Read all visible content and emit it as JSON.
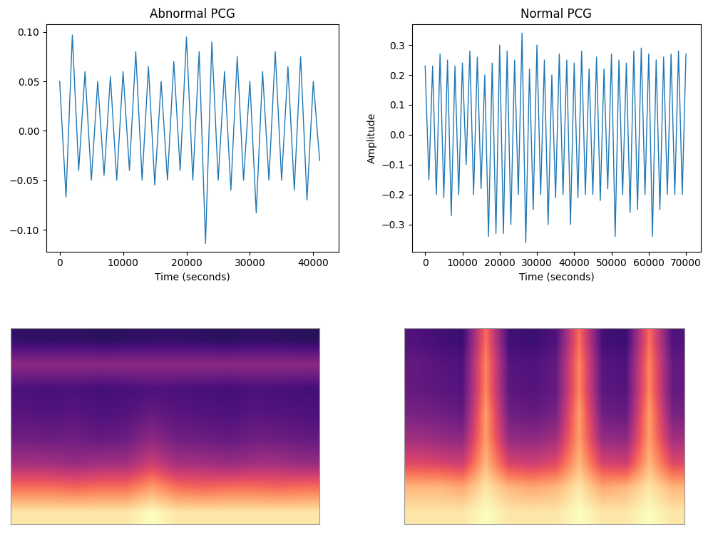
{
  "chart_data": [
    {
      "type": "line",
      "title": "Abnormal PCG",
      "x_label": "Time (seconds)",
      "x": [
        0,
        1000,
        2000,
        3000,
        4000,
        5000,
        6000,
        7000,
        8000,
        9000,
        10000,
        11000,
        12000,
        13000,
        14000,
        15000,
        16000,
        17000,
        18000,
        19000,
        20000,
        21000,
        22000,
        23000,
        24000,
        25000,
        26000,
        27000,
        28000,
        29000,
        30000,
        31000,
        32000,
        33000,
        34000,
        35000,
        36000,
        37000,
        38000,
        39000,
        40000,
        41000
      ],
      "values": [
        0.05,
        -0.067,
        0.097,
        -0.04,
        0.06,
        -0.05,
        0.05,
        -0.045,
        0.055,
        -0.05,
        0.06,
        -0.04,
        0.08,
        -0.05,
        0.065,
        -0.055,
        0.05,
        -0.05,
        0.07,
        -0.04,
        0.095,
        -0.05,
        0.08,
        -0.114,
        0.09,
        -0.05,
        0.06,
        -0.06,
        0.075,
        -0.05,
        0.05,
        -0.083,
        0.06,
        -0.05,
        0.08,
        -0.05,
        0.065,
        -0.06,
        0.075,
        -0.07,
        0.05,
        -0.03
      ],
      "color": "#1f77b4",
      "xlim": [
        -2100,
        44000
      ],
      "xticks": [
        0,
        10000,
        20000,
        30000,
        40000
      ],
      "ylim": [
        -0.122,
        0.108
      ],
      "yticks": [
        {
          "value": -0.1,
          "label": "−0.10"
        },
        {
          "value": -0.05,
          "label": "−0.05"
        },
        {
          "value": 0.0,
          "label": "0.00"
        },
        {
          "value": 0.05,
          "label": "0.05"
        },
        {
          "value": 0.1,
          "label": "0.10"
        }
      ]
    },
    {
      "type": "line",
      "title": "Normal PCG",
      "x_label": "Time (seconds)",
      "y_label": "Amplitude",
      "x": [
        0,
        1000,
        2000,
        3000,
        4000,
        5000,
        6000,
        7000,
        8000,
        9000,
        10000,
        11000,
        12000,
        13000,
        14000,
        15000,
        16000,
        17000,
        18000,
        19000,
        20000,
        21000,
        22000,
        23000,
        24000,
        25000,
        26000,
        27000,
        28000,
        29000,
        30000,
        31000,
        32000,
        33000,
        34000,
        35000,
        36000,
        37000,
        38000,
        39000,
        40000,
        41000,
        42000,
        43000,
        44000,
        45000,
        46000,
        47000,
        48000,
        49000,
        50000,
        51000,
        52000,
        53000,
        54000,
        55000,
        56000,
        57000,
        58000,
        59000,
        60000,
        61000,
        62000,
        63000,
        64000,
        65000,
        66000,
        67000,
        68000,
        69000,
        70000
      ],
      "values": [
        0.23,
        -0.15,
        0.23,
        -0.2,
        0.27,
        -0.21,
        0.25,
        -0.27,
        0.23,
        -0.2,
        0.24,
        -0.1,
        0.28,
        -0.2,
        0.26,
        -0.18,
        0.2,
        -0.34,
        0.24,
        -0.33,
        0.3,
        -0.33,
        0.28,
        -0.3,
        0.25,
        -0.2,
        0.34,
        -0.36,
        0.22,
        -0.25,
        0.3,
        -0.2,
        0.25,
        -0.3,
        0.2,
        -0.21,
        0.27,
        -0.2,
        0.25,
        -0.3,
        0.24,
        -0.21,
        0.28,
        -0.2,
        0.22,
        -0.2,
        0.26,
        -0.22,
        0.22,
        -0.18,
        0.27,
        -0.34,
        0.25,
        -0.2,
        0.24,
        -0.26,
        0.28,
        -0.25,
        0.29,
        -0.2,
        0.27,
        -0.34,
        0.25,
        -0.25,
        0.26,
        -0.2,
        0.27,
        -0.2,
        0.28,
        -0.2,
        0.27
      ],
      "color": "#1f77b4",
      "xlim": [
        -3500,
        74000
      ],
      "xticks": [
        0,
        10000,
        20000,
        30000,
        40000,
        50000,
        60000,
        70000
      ],
      "ylim": [
        -0.39,
        0.37
      ],
      "yticks": [
        {
          "value": -0.3,
          "label": "−0.3"
        },
        {
          "value": -0.2,
          "label": "−0.2"
        },
        {
          "value": -0.1,
          "label": "−0.1"
        },
        {
          "value": 0.0,
          "label": "0.0"
        },
        {
          "value": 0.1,
          "label": "0.1"
        },
        {
          "value": 0.2,
          "label": "0.2"
        },
        {
          "value": 0.3,
          "label": "0.3"
        }
      ]
    },
    {
      "type": "heatmap",
      "tick_labels": false,
      "vlim": [
        0,
        1
      ],
      "cells": [
        [
          0.95,
          0.95,
          0.95,
          0.95,
          0.95,
          1.0,
          0.95,
          0.95,
          0.95,
          0.95,
          0.95,
          0.95
        ],
        [
          0.7,
          0.7,
          0.68,
          0.7,
          0.7,
          0.8,
          0.7,
          0.68,
          0.7,
          0.7,
          0.68,
          0.7
        ],
        [
          0.45,
          0.45,
          0.42,
          0.45,
          0.45,
          0.55,
          0.45,
          0.45,
          0.42,
          0.45,
          0.45,
          0.42
        ],
        [
          0.33,
          0.32,
          0.33,
          0.3,
          0.32,
          0.4,
          0.33,
          0.32,
          0.3,
          0.33,
          0.32,
          0.3
        ],
        [
          0.27,
          0.26,
          0.27,
          0.25,
          0.26,
          0.3,
          0.27,
          0.26,
          0.25,
          0.27,
          0.26,
          0.25
        ],
        [
          0.24,
          0.23,
          0.24,
          0.22,
          0.23,
          0.25,
          0.24,
          0.23,
          0.22,
          0.24,
          0.23,
          0.22
        ],
        [
          0.4,
          0.4,
          0.4,
          0.4,
          0.4,
          0.4,
          0.4,
          0.4,
          0.4,
          0.4,
          0.4,
          0.4
        ],
        [
          0.18,
          0.17,
          0.18,
          0.16,
          0.17,
          0.18,
          0.18,
          0.17,
          0.16,
          0.18,
          0.17,
          0.16
        ]
      ]
    },
    {
      "type": "heatmap",
      "tick_labels": false,
      "vlim": [
        0,
        1
      ],
      "cells": [
        [
          0.95,
          0.95,
          0.95,
          1.0,
          0.95,
          0.95,
          0.95,
          1.0,
          0.95,
          0.95,
          1.0,
          0.95
        ],
        [
          0.85,
          0.85,
          0.82,
          0.95,
          0.85,
          0.82,
          0.85,
          0.95,
          0.82,
          0.85,
          0.95,
          0.85
        ],
        [
          0.6,
          0.58,
          0.55,
          0.85,
          0.58,
          0.55,
          0.6,
          0.85,
          0.58,
          0.55,
          0.85,
          0.6
        ],
        [
          0.45,
          0.42,
          0.4,
          0.8,
          0.42,
          0.4,
          0.45,
          0.8,
          0.42,
          0.4,
          0.8,
          0.45
        ],
        [
          0.35,
          0.33,
          0.3,
          0.8,
          0.33,
          0.3,
          0.35,
          0.8,
          0.33,
          0.3,
          0.8,
          0.35
        ],
        [
          0.3,
          0.28,
          0.26,
          0.75,
          0.28,
          0.26,
          0.3,
          0.75,
          0.28,
          0.26,
          0.75,
          0.3
        ],
        [
          0.3,
          0.27,
          0.25,
          0.75,
          0.27,
          0.25,
          0.3,
          0.75,
          0.27,
          0.25,
          0.75,
          0.3
        ],
        [
          0.25,
          0.22,
          0.2,
          0.7,
          0.22,
          0.2,
          0.25,
          0.7,
          0.22,
          0.2,
          0.7,
          0.25
        ]
      ]
    }
  ]
}
